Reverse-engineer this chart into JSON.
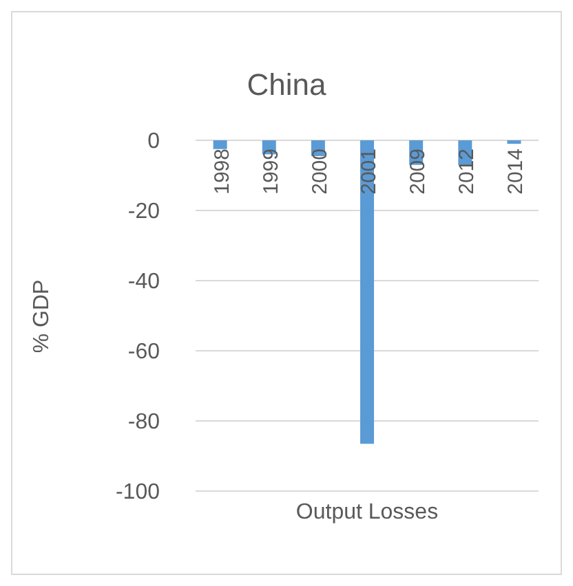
{
  "chart_data": {
    "type": "bar",
    "title": "China",
    "xlabel": "Output Losses",
    "ylabel": "% GDP",
    "categories": [
      "1998",
      "1999",
      "2000",
      "2001",
      "2009",
      "2012",
      "2014"
    ],
    "values": [
      -2.5,
      -4,
      -4.5,
      -86.5,
      -7,
      -7,
      -1
    ],
    "color": "#5b9bd5",
    "ylim": [
      -100,
      0
    ],
    "yticks": [
      -100,
      -80,
      -60,
      -40,
      -20,
      0
    ],
    "grid": "y",
    "legend": false
  }
}
